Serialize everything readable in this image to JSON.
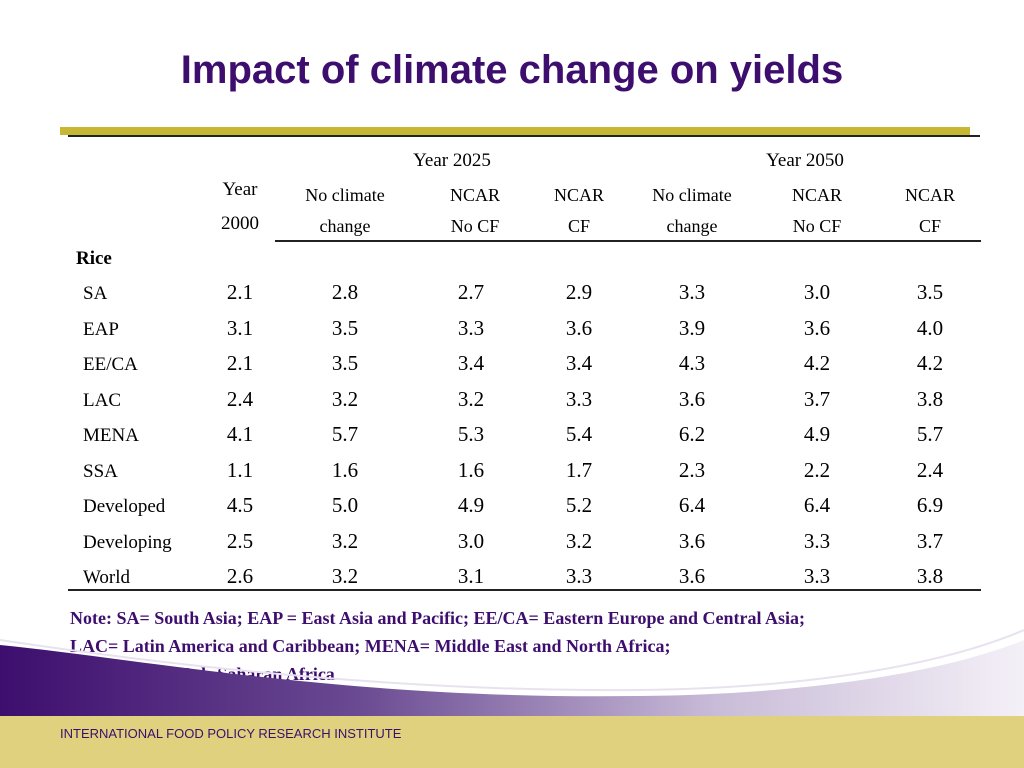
{
  "title": "Impact of climate change on yields",
  "table": {
    "group_headers": [
      "Year 2025",
      "Year 2050"
    ],
    "year2000_header": [
      "Year",
      "2000"
    ],
    "sub_headers": [
      [
        "No climate",
        "change"
      ],
      [
        "NCAR",
        "No CF"
      ],
      [
        "NCAR",
        "CF"
      ],
      [
        "No climate",
        "change"
      ],
      [
        "NCAR",
        "No CF"
      ],
      [
        "NCAR",
        "CF"
      ]
    ],
    "section_label": "Rice",
    "rows": [
      {
        "label": "SA",
        "values": [
          "2.1",
          "2.8",
          "2.7",
          "2.9",
          "3.3",
          "3.0",
          "3.5"
        ]
      },
      {
        "label": "EAP",
        "values": [
          "3.1",
          "3.5",
          "3.3",
          "3.6",
          "3.9",
          "3.6",
          "4.0"
        ]
      },
      {
        "label": "EE/CA",
        "values": [
          "2.1",
          "3.5",
          "3.4",
          "3.4",
          "4.3",
          "4.2",
          "4.2"
        ]
      },
      {
        "label": "LAC",
        "values": [
          "2.4",
          "3.2",
          "3.2",
          "3.3",
          "3.6",
          "3.7",
          "3.8"
        ]
      },
      {
        "label": "MENA",
        "values": [
          "4.1",
          "5.7",
          "5.3",
          "5.4",
          "6.2",
          "4.9",
          "5.7"
        ]
      },
      {
        "label": "SSA",
        "values": [
          "1.1",
          "1.6",
          "1.6",
          "1.7",
          "2.3",
          "2.2",
          "2.4"
        ]
      },
      {
        "label": "Developed",
        "values": [
          "4.5",
          "5.0",
          "4.9",
          "5.2",
          "6.4",
          "6.4",
          "6.9"
        ]
      },
      {
        "label": "Developing",
        "values": [
          "2.5",
          "3.2",
          "3.0",
          "3.2",
          "3.6",
          "3.3",
          "3.7"
        ]
      },
      {
        "label": "World",
        "values": [
          "2.6",
          "3.2",
          "3.1",
          "3.3",
          "3.6",
          "3.3",
          "3.8"
        ]
      }
    ]
  },
  "note": {
    "line1": "Note: SA= South Asia; EAP = East Asia and Pacific; EE/CA= Eastern Europe and Central Asia;",
    "line2": "LAC= Latin America and Caribbean; MENA= Middle East and North Africa;",
    "line3": "SSA=Sub-Saharan Africa"
  },
  "footer": "INTERNATIONAL FOOD POLICY RESEARCH INSTITUTE",
  "colors": {
    "title": "#3d0e6e",
    "gold_rule": "#c7b733",
    "footer_band": "#dfd17e",
    "swoosh_purple": "#4a1a7a"
  }
}
